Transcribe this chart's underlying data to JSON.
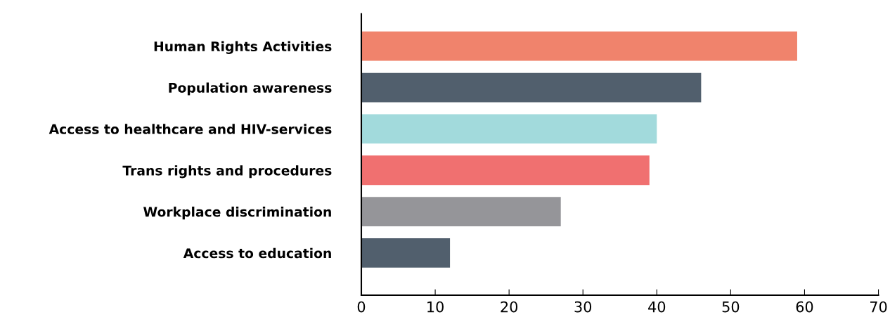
{
  "chart_data": {
    "type": "bar",
    "orientation": "horizontal",
    "categories": [
      "Human Rights Activities",
      "Population awareness",
      "Access to healthcare and HIV-services",
      "Trans rights and procedures",
      "Workplace discrimination",
      "Access to education"
    ],
    "values": [
      59,
      46,
      40,
      39,
      27,
      12
    ],
    "colors": [
      "#f0836c",
      "#515f6d",
      "#a2dadc",
      "#f07070",
      "#959599",
      "#515f6d"
    ],
    "xlim": [
      0,
      70
    ],
    "xticks": [
      0,
      10,
      20,
      30,
      40,
      50,
      60,
      70
    ],
    "grid": false,
    "legend": false
  }
}
